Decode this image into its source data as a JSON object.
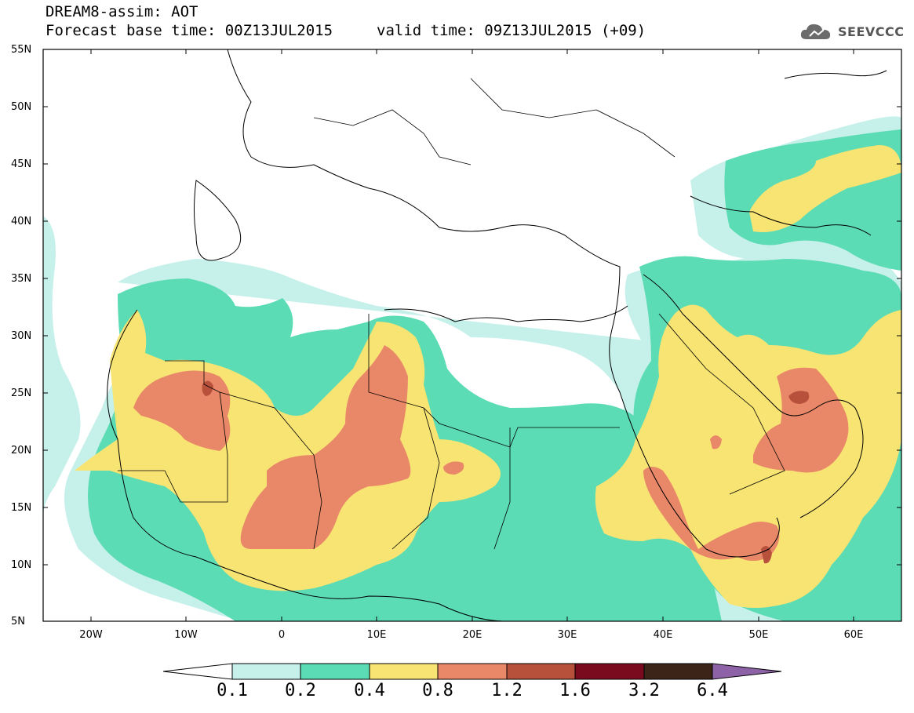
{
  "header": {
    "line1": "DREAM8-assim: AOT",
    "line2": "Forecast base time: 00Z13JUL2015",
    "valid": "valid time: 09Z13JUL2015 (+09)",
    "logo": "SEEVCCC"
  },
  "map": {
    "lat_labels": [
      "55N",
      "50N",
      "45N",
      "40N",
      "35N",
      "30N",
      "25N",
      "20N",
      "15N",
      "10N",
      "5N"
    ],
    "lon_labels": [
      "20W",
      "10W",
      "0",
      "10E",
      "20E",
      "30E",
      "40E",
      "50E",
      "60E"
    ],
    "lat_range": [
      5,
      55
    ],
    "lon_range": [
      -25,
      65
    ],
    "field": "Aerosol Optical Thickness"
  },
  "colorbar": {
    "levels": [
      "0.1",
      "0.2",
      "0.4",
      "0.8",
      "1.2",
      "1.6",
      "3.2",
      "6.4"
    ],
    "colors": [
      "#ffffff",
      "#c6f0ea",
      "#5cdcb4",
      "#f7e473",
      "#e98868",
      "#b8513c",
      "#7a0b1f",
      "#3c2418",
      "#8e62a6"
    ]
  }
}
